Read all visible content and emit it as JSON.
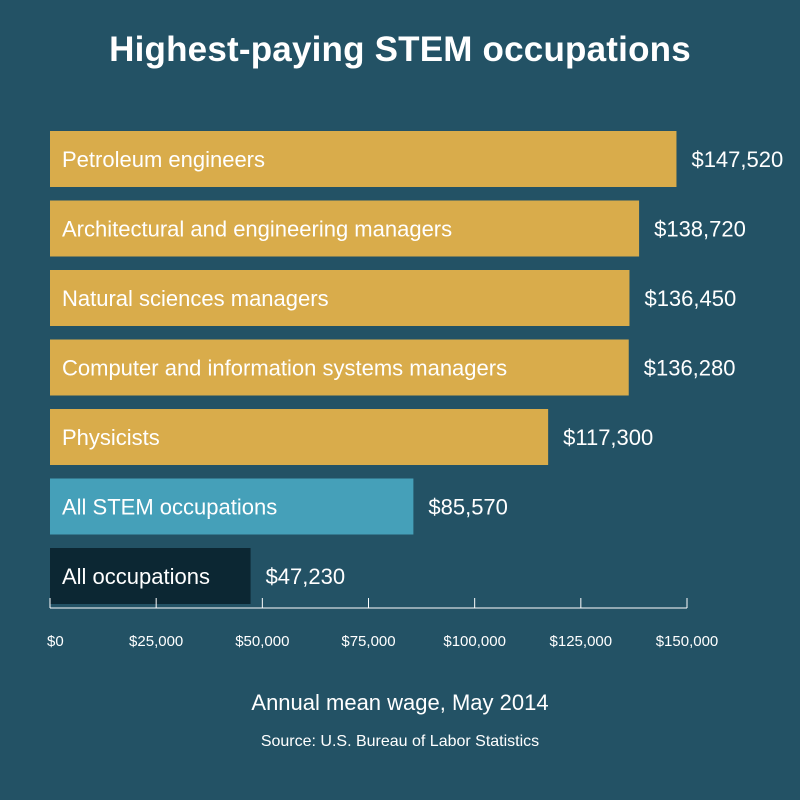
{
  "colors": {
    "background": "#235265",
    "highlight_bar": "#d9ac4b",
    "stem_bar": "#45a0b9",
    "all_bar": "#0c2733",
    "text": "#ffffff"
  },
  "chart_data": {
    "type": "bar",
    "orientation": "horizontal",
    "title": "Highest-paying STEM occupations",
    "xlabel": "Annual mean wage, May 2014",
    "source": "Source: U.S. Bureau of Labor Statistics",
    "categories": [
      "Petroleum engineers",
      "Architectural and engineering managers",
      "Natural sciences managers",
      "Computer and information systems managers",
      "Physicists",
      "All STEM occupations",
      "All occupations"
    ],
    "values": [
      147520,
      138720,
      136450,
      136280,
      117300,
      85570,
      47230
    ],
    "value_labels": [
      "$147,520",
      "$138,720",
      "$136,450",
      "$136,280",
      "$117,300",
      "$85,570",
      "$47,230"
    ],
    "bar_color_keys": [
      "highlight_bar",
      "highlight_bar",
      "highlight_bar",
      "highlight_bar",
      "highlight_bar",
      "stem_bar",
      "all_bar"
    ],
    "xlim": [
      0,
      150000
    ],
    "xticks": [
      0,
      25000,
      50000,
      75000,
      100000,
      125000,
      150000
    ],
    "xtick_labels": [
      "$0",
      "$25,000",
      "$50,000",
      "$75,000",
      "$100,000",
      "$125,000",
      "$150,000"
    ],
    "grid": false,
    "legend": false
  }
}
